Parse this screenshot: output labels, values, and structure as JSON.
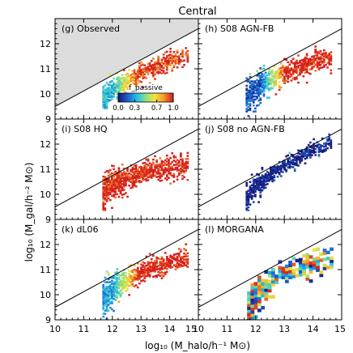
{
  "figure": {
    "title": "Central",
    "ylabel": "log₁₀ (M_gal/h⁻² M⊙)",
    "xlabel": "log₁₀ (M_halo/h⁻¹ M⊙)"
  },
  "colorbar": {
    "label": "f_passive",
    "ticks": [
      "0.0",
      "0.3",
      "0.7",
      "1.0"
    ],
    "tick_values": [
      0.0,
      0.3,
      0.7,
      1.0
    ]
  },
  "chart_data": {
    "type": "heatmap",
    "grid": "3x2 panels",
    "shared_xaxis": {
      "label": "log₁₀ (M_halo/h⁻¹ M⊙)",
      "xlim": [
        10,
        15
      ],
      "ticks": [
        10,
        11,
        12,
        13,
        14,
        15
      ]
    },
    "shared_yaxis": {
      "label": "log₁₀ (M_gal/h⁻² M⊙)",
      "ylim": [
        9,
        13
      ],
      "ticks": [
        9,
        10,
        11,
        12
      ]
    },
    "reference_line": {
      "points": [
        [
          10,
          9.5
        ],
        [
          15,
          12.6
        ]
      ]
    },
    "colormap": {
      "name": "f_passive",
      "range": [
        0,
        1
      ],
      "stops": [
        "#1a1a7a",
        "#1f5fd0",
        "#22c0e8",
        "#8be08a",
        "#f3e43a",
        "#f59a2a",
        "#d6201f"
      ]
    },
    "panels": [
      {
        "label": "(g) Observed",
        "shaded_background": true,
        "background_color": "#dcdcdc",
        "trend": [
          [
            11.7,
            9.8
          ],
          [
            12.0,
            10.15
          ],
          [
            12.5,
            10.5
          ],
          [
            13.0,
            10.78
          ],
          [
            13.5,
            11.02
          ],
          [
            14.0,
            11.25
          ],
          [
            14.5,
            11.45
          ]
        ],
        "x_range": [
          11.65,
          14.6
        ],
        "scatter": 0.25,
        "passive_low": 0.35,
        "passive_high": 0.95,
        "blue_wedge_x": 12.0,
        "cell": 0.06,
        "pixelated": false
      },
      {
        "label": "(h) S08 AGN-FB",
        "shaded_background": false,
        "trend": [
          [
            11.7,
            9.8
          ],
          [
            12.0,
            10.2
          ],
          [
            12.5,
            10.55
          ],
          [
            13.0,
            10.8
          ],
          [
            13.5,
            11.0
          ],
          [
            14.0,
            11.2
          ],
          [
            14.5,
            11.35
          ]
        ],
        "x_range": [
          11.65,
          14.6
        ],
        "scatter": 0.3,
        "passive_low": 0.15,
        "passive_high": 1.0,
        "blue_wedge_x": 12.15,
        "cell": 0.06,
        "pixelated": false
      },
      {
        "label": "(i) S08 HQ",
        "shaded_background": false,
        "trend": [
          [
            11.7,
            10.0
          ],
          [
            12.0,
            10.35
          ],
          [
            12.5,
            10.62
          ],
          [
            13.0,
            10.8
          ],
          [
            13.5,
            10.92
          ],
          [
            14.0,
            11.02
          ],
          [
            14.5,
            11.1
          ]
        ],
        "x_range": [
          11.65,
          14.6
        ],
        "scatter": 0.3,
        "passive_low": 0.98,
        "passive_high": 1.0,
        "blue_wedge_x": 11.8,
        "cell": 0.06,
        "pixelated": false
      },
      {
        "label": "(j) S08 no AGN-FB",
        "shaded_background": false,
        "trend": [
          [
            11.7,
            9.9
          ],
          [
            12.0,
            10.3
          ],
          [
            12.5,
            10.75
          ],
          [
            13.0,
            11.1
          ],
          [
            13.5,
            11.45
          ],
          [
            14.0,
            11.75
          ],
          [
            14.5,
            12.0
          ]
        ],
        "x_range": [
          11.65,
          14.6
        ],
        "scatter": 0.22,
        "passive_low": 0.0,
        "passive_high": 0.02,
        "blue_wedge_x": 11.6,
        "cell": 0.06,
        "pixelated": false
      },
      {
        "label": "(k) dL06",
        "shaded_background": false,
        "trend": [
          [
            11.7,
            9.8
          ],
          [
            12.0,
            10.2
          ],
          [
            12.5,
            10.55
          ],
          [
            13.0,
            10.85
          ],
          [
            13.5,
            11.05
          ],
          [
            14.0,
            11.25
          ],
          [
            14.5,
            11.4
          ]
        ],
        "x_range": [
          11.65,
          14.6
        ],
        "scatter": 0.3,
        "passive_low": 0.3,
        "passive_high": 1.0,
        "blue_wedge_x": 12.0,
        "cell": 0.06,
        "pixelated": false
      },
      {
        "label": "(l) MORGANA",
        "shaded_background": false,
        "trend": [
          [
            11.75,
            9.5
          ],
          [
            12.0,
            9.9
          ],
          [
            12.5,
            10.45
          ],
          [
            13.0,
            10.85
          ],
          [
            13.5,
            11.0
          ],
          [
            14.0,
            11.15
          ],
          [
            14.5,
            11.3
          ]
        ],
        "x_range": [
          11.7,
          14.6
        ],
        "scatter": 0.35,
        "passive_low": 0.0,
        "passive_high": 1.0,
        "blue_wedge_x": 11.6,
        "cell": 0.12,
        "pixelated": true
      }
    ]
  }
}
